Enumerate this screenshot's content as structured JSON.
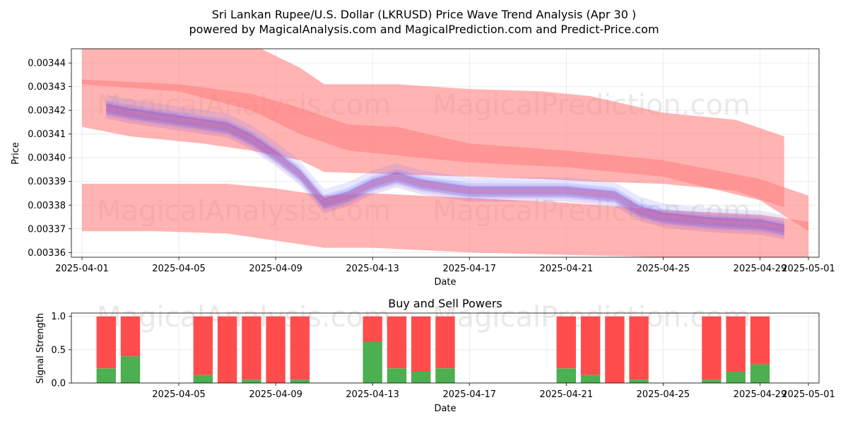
{
  "title_line1": "Sri Lankan Rupee/U.S. Dollar (LKRUSD) Price Wave Trend Analysis (Apr 30 )",
  "title_line2": "powered by MagicalAnalysis.com and MagicalPrediction.com and Predict-Price.com",
  "watermarks": [
    "MagicalAnalysis.com",
    "MagicalPrediction.com"
  ],
  "colors": {
    "red_band": "#ff8080",
    "blue_band": "#8080ff",
    "purple_band": "#8a4fc8",
    "buy": "#4caf50",
    "sell": "#ff4d4d"
  },
  "chart_data": [
    {
      "type": "area",
      "ylabel": "Price",
      "xlabel": "Date",
      "x_ticks": [
        "2025-04-01",
        "2025-04-05",
        "2025-04-09",
        "2025-04-13",
        "2025-04-17",
        "2025-04-21",
        "2025-04-25",
        "2025-04-29",
        "2025-05-01"
      ],
      "y_ticks": [
        "0.00336",
        "0.00337",
        "0.00338",
        "0.00339",
        "0.00340",
        "0.00341",
        "0.00342",
        "0.00343",
        "0.00344"
      ],
      "xlim": [
        "2025-04-01",
        "2025-05-01"
      ],
      "ylim": [
        0.003358,
        0.003446
      ],
      "grid": true,
      "red_bands": [
        {
          "x": [
            "2025-04-01",
            "2025-04-03",
            "2025-04-06",
            "2025-04-08",
            "2025-04-10",
            "2025-04-11",
            "2025-04-14",
            "2025-04-17",
            "2025-04-20",
            "2025-04-22",
            "2025-04-25",
            "2025-04-28",
            "2025-04-30"
          ],
          "upper": [
            0.00345,
            0.003452,
            0.003451,
            0.003448,
            0.003438,
            0.003431,
            0.003431,
            0.003429,
            0.003428,
            0.003426,
            0.003419,
            0.003416,
            0.003409
          ],
          "lower": [
            0.003413,
            0.003409,
            0.003406,
            0.003403,
            0.003399,
            0.003394,
            0.003393,
            0.003392,
            0.003391,
            0.00339,
            0.003389,
            0.003386,
            0.003379
          ]
        },
        {
          "x": [
            "2025-04-01",
            "2025-04-05",
            "2025-04-08",
            "2025-04-10",
            "2025-04-12",
            "2025-04-14",
            "2025-04-17",
            "2025-04-21",
            "2025-04-25",
            "2025-04-29",
            "2025-05-01"
          ],
          "upper": [
            0.003433,
            0.003431,
            0.003427,
            0.003421,
            0.003414,
            0.003413,
            0.003406,
            0.003403,
            0.003399,
            0.003391,
            0.003384
          ],
          "lower": [
            0.003431,
            0.003428,
            0.00342,
            0.00341,
            0.003403,
            0.003401,
            0.003398,
            0.003396,
            0.003392,
            0.003382,
            0.003369
          ]
        },
        {
          "x": [
            "2025-04-01",
            "2025-04-04",
            "2025-04-07",
            "2025-04-09",
            "2025-04-11",
            "2025-04-13",
            "2025-04-17",
            "2025-04-21",
            "2025-04-25",
            "2025-04-29",
            "2025-05-01"
          ],
          "upper": [
            0.003389,
            0.003389,
            0.003389,
            0.003387,
            0.003384,
            0.003385,
            0.003383,
            0.003381,
            0.003378,
            0.003376,
            0.003373
          ],
          "lower": [
            0.003369,
            0.003369,
            0.003368,
            0.003365,
            0.003362,
            0.003362,
            0.00336,
            0.003359,
            0.003358,
            0.003357,
            0.003356
          ]
        }
      ],
      "wave_center": {
        "x": [
          "2025-04-02",
          "2025-04-03",
          "2025-04-05",
          "2025-04-07",
          "2025-04-08",
          "2025-04-09",
          "2025-04-10",
          "2025-04-11",
          "2025-04-12",
          "2025-04-13",
          "2025-04-14",
          "2025-04-15",
          "2025-04-17",
          "2025-04-19",
          "2025-04-21",
          "2025-04-23",
          "2025-04-24",
          "2025-04-25",
          "2025-04-27",
          "2025-04-29",
          "2025-04-30"
        ],
        "y": [
          0.003421,
          0.003419,
          0.003416,
          0.003413,
          0.003408,
          0.003401,
          0.003393,
          0.003381,
          0.003384,
          0.003389,
          0.003392,
          0.003389,
          0.003386,
          0.003386,
          0.003386,
          0.003384,
          0.003378,
          0.003375,
          0.003373,
          0.003372,
          0.00337
        ]
      }
    },
    {
      "type": "bar",
      "title": "Buy and Sell Powers",
      "ylabel": "Signal Strength",
      "xlabel": "Date",
      "x_ticks": [
        "2025-04-05",
        "2025-04-09",
        "2025-04-13",
        "2025-04-17",
        "2025-04-21",
        "2025-04-25",
        "2025-04-29",
        "2025-05-01"
      ],
      "y_ticks": [
        "0.0",
        "0.5",
        "1.0"
      ],
      "ylim": [
        0,
        1.05
      ],
      "grid": true,
      "dates": [
        "2025-04-02",
        "2025-04-03",
        "2025-04-06",
        "2025-04-07",
        "2025-04-08",
        "2025-04-09",
        "2025-04-10",
        "2025-04-13",
        "2025-04-14",
        "2025-04-15",
        "2025-04-16",
        "2025-04-21",
        "2025-04-22",
        "2025-04-23",
        "2025-04-24",
        "2025-04-27",
        "2025-04-28",
        "2025-04-29"
      ],
      "series": [
        {
          "name": "Buy",
          "values": [
            0.22,
            0.4,
            0.12,
            0.0,
            0.05,
            0.0,
            0.05,
            0.62,
            0.22,
            0.17,
            0.22,
            0.22,
            0.12,
            0.0,
            0.05,
            0.05,
            0.17,
            0.28
          ]
        },
        {
          "name": "Sell",
          "values": [
            0.78,
            0.6,
            0.88,
            1.0,
            0.95,
            1.0,
            0.95,
            0.38,
            0.78,
            0.83,
            0.78,
            0.78,
            0.88,
            1.0,
            0.95,
            0.95,
            0.83,
            0.72
          ]
        }
      ]
    }
  ]
}
